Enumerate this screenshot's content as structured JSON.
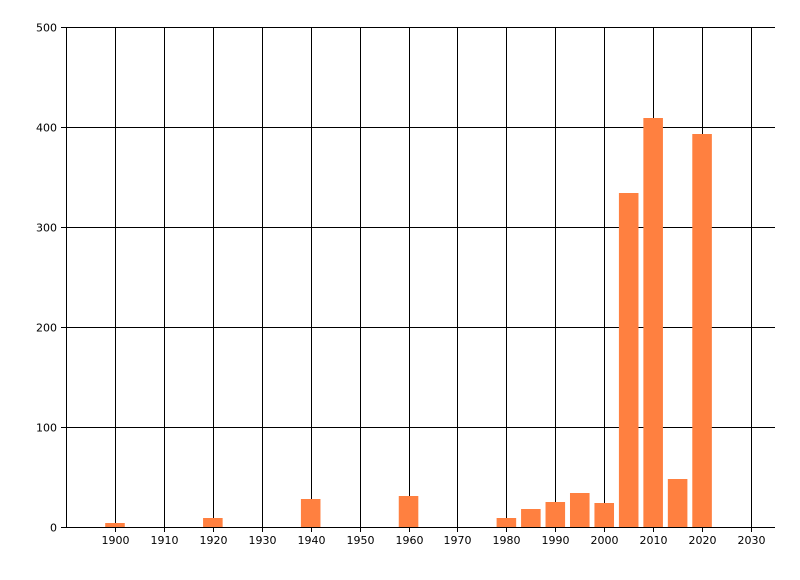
{
  "chart_data": {
    "type": "bar",
    "title": "",
    "xlabel": "",
    "ylabel": "",
    "x": [
      1900,
      1920,
      1940,
      1960,
      1980,
      1985,
      1990,
      1995,
      2000,
      2005,
      2010,
      2015,
      2020
    ],
    "values": [
      4,
      9,
      28,
      31,
      9,
      18,
      25,
      34,
      24,
      334,
      409,
      48,
      393
    ],
    "xlim": [
      1890,
      2035
    ],
    "ylim": [
      0,
      500
    ],
    "x_ticks": [
      1900,
      1910,
      1920,
      1930,
      1940,
      1950,
      1960,
      1970,
      1980,
      1990,
      2000,
      2010,
      2020,
      2030
    ],
    "y_ticks": [
      0,
      100,
      200,
      300,
      400,
      500
    ],
    "bar_width_years": 4,
    "grid": true,
    "legend": "none",
    "bar_color": "#FF8040",
    "grid_color": "#000000"
  }
}
